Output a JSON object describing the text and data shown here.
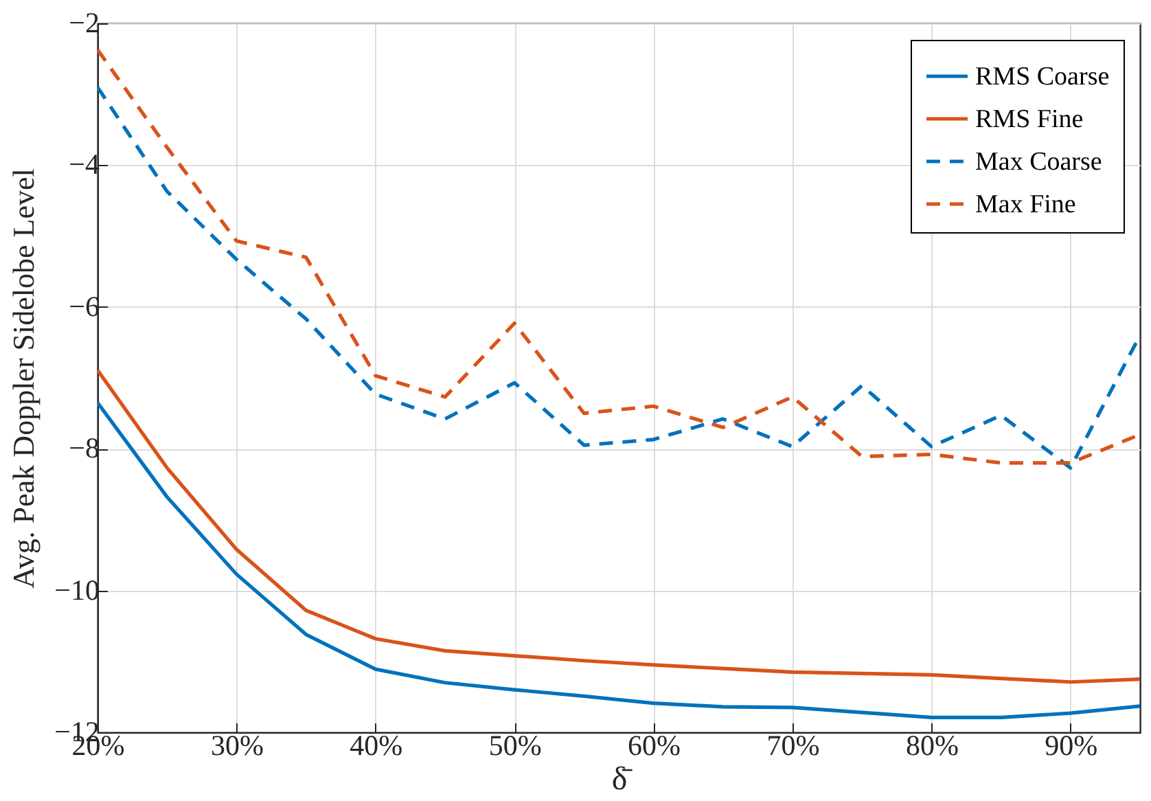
{
  "chart_data": {
    "type": "line",
    "xlabel": "δ̄",
    "ylabel": "Avg. Peak Doppler Sidelobe Level",
    "x": [
      20,
      25,
      30,
      35,
      40,
      45,
      50,
      55,
      60,
      65,
      70,
      75,
      80,
      85,
      90,
      95
    ],
    "xlim": [
      20,
      95
    ],
    "xticks": [
      {
        "value": 20,
        "label": "20%"
      },
      {
        "value": 30,
        "label": "30%"
      },
      {
        "value": 40,
        "label": "40%"
      },
      {
        "value": 50,
        "label": "50%"
      },
      {
        "value": 60,
        "label": "60%"
      },
      {
        "value": 70,
        "label": "70%"
      },
      {
        "value": 80,
        "label": "80%"
      },
      {
        "value": 90,
        "label": "90%"
      }
    ],
    "ylim": [
      -12,
      -2
    ],
    "yticks": [
      -12,
      -10,
      -8,
      -6,
      -4,
      -2
    ],
    "grid": true,
    "legend": "top right",
    "series": [
      {
        "name": "RMS Coarse",
        "color": "#0072bd",
        "line_style": "solid",
        "values": [
          -7.35,
          -8.68,
          -9.77,
          -10.62,
          -11.11,
          -11.3,
          -11.4,
          -11.49,
          -11.59,
          -11.64,
          -11.65,
          -11.72,
          -11.79,
          -11.79,
          -11.73,
          -11.63
        ]
      },
      {
        "name": "RMS Fine",
        "color": "#d95319",
        "line_style": "solid",
        "values": [
          -6.89,
          -8.27,
          -9.42,
          -10.28,
          -10.68,
          -10.85,
          -10.92,
          -10.99,
          -11.05,
          -11.1,
          -11.15,
          -11.17,
          -11.19,
          -11.24,
          -11.29,
          -11.25
        ]
      },
      {
        "name": "Max Coarse",
        "color": "#0072bd",
        "line_style": "dashed",
        "values": [
          -2.9,
          -4.37,
          -5.33,
          -6.17,
          -7.23,
          -7.58,
          -7.07,
          -7.95,
          -7.87,
          -7.58,
          -7.97,
          -7.11,
          -7.97,
          -7.53,
          -8.27,
          -6.4
        ]
      },
      {
        "name": "Max Fine",
        "color": "#d95319",
        "line_style": "dashed",
        "values": [
          -2.37,
          -3.75,
          -5.07,
          -5.3,
          -6.97,
          -7.27,
          -6.23,
          -7.5,
          -7.4,
          -7.7,
          -7.27,
          -8.11,
          -8.08,
          -8.2,
          -8.2,
          -7.8
        ]
      }
    ]
  }
}
